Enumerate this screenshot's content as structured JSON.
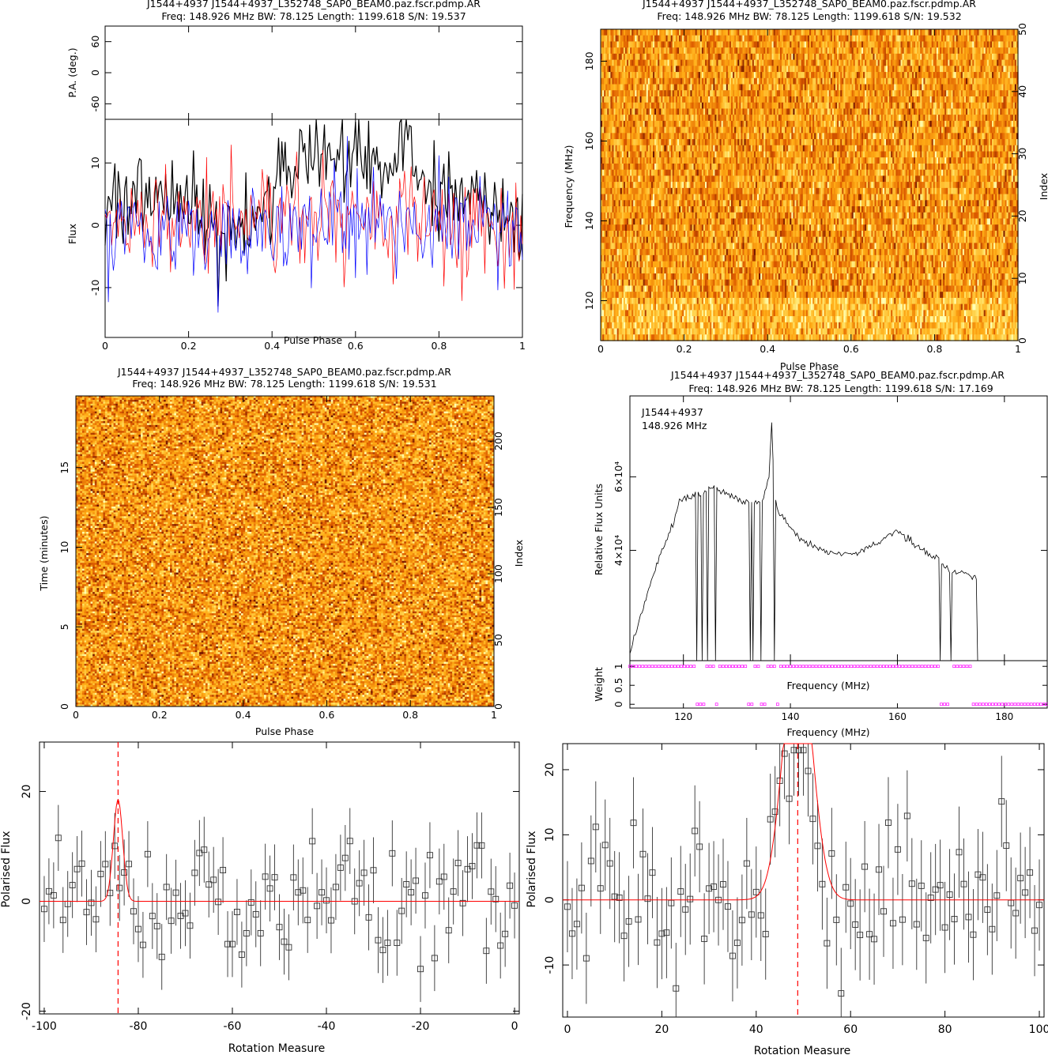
{
  "panels": {
    "tl": {
      "title1": "J1544+4937 J1544+4937_L352748_SAP0_BEAM0.paz.fscr.pdmp.AR",
      "title2": "Freq: 148.926 MHz BW: 78.125 Length: 1199.618 S/N: 19.537",
      "pa_ylabel": "P.A. (deg.)",
      "flux_ylabel": "Flux",
      "xlabel": "Pulse Phase"
    },
    "tr": {
      "title1": "J1544+4937 J1544+4937_L352748_SAP0_BEAM0.paz.fscr.pdmp.AR",
      "title2": "Freq: 148.926 MHz BW: 78.125 Length: 1199.618 S/N: 19.532",
      "ylabel": "Frequency (MHz)",
      "ylabel_right": "Index",
      "xlabel": "Pulse Phase"
    },
    "ml": {
      "title1": "J1544+4937 J1544+4937_L352748_SAP0_BEAM0.paz.fscr.pdmp.AR",
      "title2": "Freq: 148.926 MHz BW: 78.125 Length: 1199.618 S/N: 19.531",
      "ylabel": "Time (minutes)",
      "ylabel_right": "Index",
      "xlabel": "Pulse Phase"
    },
    "mr": {
      "title1": "J1544+4937 J1544+4937_L352748_SAP0_BEAM0.paz.fscr.pdmp.AR",
      "title2": "Freq: 148.926 MHz BW: 78.125 Length: 1199.618 S/N: 17.169",
      "annot1": "J1544+4937",
      "annot2": "148.926 MHz",
      "ylabel": "Relative Flux Units",
      "weight_ylabel": "Weight",
      "inner_xlabel": "Frequency (MHz)",
      "xlabel": "Frequency (MHz)"
    },
    "bl": {
      "xlabel": "Rotation Measure",
      "ylabel": "Polarised Flux"
    },
    "br": {
      "xlabel": "Rotation Measure",
      "ylabel": "Polarised Flux"
    }
  },
  "colors": {
    "axis": "#000000",
    "profile_I": "#000000",
    "profile_L": "#ff0000",
    "profile_V": "#0000ff",
    "fit": "#ff0000",
    "marker_magenta": "#ff00ff",
    "heat_low": "#7a1a00",
    "heat_mid": "#ff9900",
    "heat_high": "#ffffa0"
  },
  "chart_data": [
    {
      "id": "tl_pa",
      "type": "scatter",
      "xlim": [
        0,
        1
      ],
      "ylim": [
        -90,
        90
      ],
      "yticks": [
        -60,
        0,
        60
      ],
      "ylabel": "P.A. (deg.)",
      "points": []
    },
    {
      "id": "tl_flux",
      "type": "line",
      "xlim": [
        0,
        1
      ],
      "ylim": [
        -18,
        17
      ],
      "xticks": [
        0,
        0.2,
        0.4,
        0.6,
        0.8,
        1
      ],
      "yticks": [
        -10,
        0,
        10
      ],
      "xlabel": "Pulse Phase",
      "ylabel": "Flux",
      "series": [
        {
          "color": "#000000",
          "anchors": [
            [
              0,
              2
            ],
            [
              0.03,
              5
            ],
            [
              0.1,
              3
            ],
            [
              0.2,
              4
            ],
            [
              0.3,
              -1
            ],
            [
              0.36,
              1
            ],
            [
              0.42,
              8
            ],
            [
              0.5,
              12
            ],
            [
              0.6,
              11
            ],
            [
              0.66,
              9
            ],
            [
              0.72,
              11
            ],
            [
              0.8,
              6
            ],
            [
              0.9,
              3
            ],
            [
              1,
              1
            ]
          ],
          "noise": 3.5,
          "n": 256,
          "spikes": [
            [
              0.27,
              -13
            ],
            [
              0.29,
              -9
            ],
            [
              0.5,
              16
            ],
            [
              0.73,
              16
            ],
            [
              0.21,
              12
            ]
          ]
        },
        {
          "color": "#ff0000",
          "anchors": [
            [
              0,
              0
            ],
            [
              0.5,
              2
            ],
            [
              1,
              0
            ]
          ],
          "noise": 4.0,
          "n": 256,
          "spikes": []
        },
        {
          "color": "#0000ff",
          "anchors": [
            [
              0,
              -1
            ],
            [
              0.5,
              0
            ],
            [
              1,
              -1
            ]
          ],
          "noise": 4.0,
          "n": 256,
          "spikes": [
            [
              0.27,
              -14
            ]
          ]
        }
      ]
    },
    {
      "id": "tr_freqphase",
      "type": "heatmap",
      "xlim": [
        0,
        1
      ],
      "ylim": [
        110,
        188
      ],
      "xticks": [
        0,
        0.2,
        0.4,
        0.6,
        0.8,
        1
      ],
      "yticks": [
        120,
        140,
        160,
        180
      ],
      "yticks_right": [
        0,
        10,
        20,
        30,
        40,
        50
      ],
      "right_lim": [
        0,
        50
      ],
      "nx": 256,
      "ny": 51,
      "xlabel": "Pulse Phase",
      "ylabel": "Frequency (MHz)"
    },
    {
      "id": "ml_timephase",
      "type": "heatmap",
      "xlim": [
        0,
        1
      ],
      "ylim": [
        0,
        19.5
      ],
      "xticks": [
        0,
        0.2,
        0.4,
        0.6,
        0.8,
        1
      ],
      "yticks": [
        0,
        5,
        10,
        15
      ],
      "yticks_right": [
        0,
        50,
        100,
        150,
        200
      ],
      "right_lim": [
        0,
        234
      ],
      "nx": 256,
      "ny": 234,
      "xlabel": "Pulse Phase",
      "ylabel": "Time (minutes)"
    },
    {
      "id": "mr_spectrum",
      "type": "line",
      "xlim": [
        110,
        188
      ],
      "ylim": [
        10000,
        82000
      ],
      "xticks": [
        120,
        140,
        160,
        180
      ],
      "ytick_labels": [
        "4×10⁴",
        "6×10⁴"
      ],
      "yticks": [
        40000,
        60000
      ],
      "annotations": [
        "J1544+4937",
        "148.926 MHz"
      ],
      "ylabel": "Relative Flux Units",
      "x": [
        110,
        112,
        114,
        116,
        118,
        119.5,
        121,
        122,
        123,
        124,
        125,
        126,
        127,
        128,
        130,
        132,
        133,
        134,
        135,
        136,
        136.5,
        137,
        138,
        140,
        142,
        144,
        146,
        148,
        150,
        152,
        154,
        156,
        158,
        160,
        162,
        164,
        166,
        168,
        170,
        172,
        174,
        175
      ],
      "y": [
        12000,
        22000,
        32000,
        40000,
        47000,
        54000,
        54000,
        55000,
        55000,
        56000,
        57000,
        57000,
        56000,
        55000,
        54000,
        53000,
        53000,
        53000,
        54000,
        60000,
        75000,
        54000,
        50000,
        46000,
        43000,
        41000,
        40000,
        39000,
        39000,
        39000,
        40000,
        42000,
        44000,
        45000,
        43000,
        41000,
        39000,
        37000,
        34000,
        34000,
        33000,
        32000
      ],
      "zero_channels": [
        122.5,
        123.5,
        124.5,
        126,
        132.5,
        133,
        134.5,
        137,
        168,
        170,
        175
      ]
    },
    {
      "id": "mr_weight",
      "type": "scatter",
      "xlim": [
        110,
        188
      ],
      "ylim": [
        -0.1,
        1.15
      ],
      "yticks": [
        0,
        0.5,
        1
      ],
      "xticks": [
        120,
        140,
        160,
        180
      ],
      "xlabel": "Frequency (MHz)",
      "ylabel": "Weight",
      "zero_channels": [
        122.5,
        123.5,
        126,
        132,
        133,
        134.5,
        135,
        137.5,
        168,
        168.5,
        169,
        169.5,
        174,
        175,
        176,
        177,
        178,
        179,
        180,
        181,
        182,
        183,
        184,
        185,
        186,
        187,
        188
      ],
      "one_ranges": [
        [
          110,
          168
        ],
        [
          170,
          175
        ]
      ]
    },
    {
      "id": "bl_rm",
      "type": "scatter",
      "xlim": [
        -101,
        1
      ],
      "ylim": [
        -20.5,
        29
      ],
      "xticks": [
        -100,
        -80,
        -60,
        -40,
        -20,
        0
      ],
      "yticks": [
        -20,
        0,
        20
      ],
      "xlabel": "Rotation Measure",
      "ylabel": "Polarised Flux",
      "rm_peak": -84.3,
      "fit_peak_height": 18.5,
      "fit_width": 1.0,
      "n": 101,
      "err": 6.0
    },
    {
      "id": "br_rm",
      "type": "scatter",
      "xlim": [
        -1,
        101
      ],
      "ylim": [
        -18,
        24
      ],
      "xticks": [
        0,
        20,
        40,
        60,
        80,
        100
      ],
      "yticks": [
        -10,
        0,
        10,
        20
      ],
      "xlabel": "Rotation Measure",
      "ylabel": "Polarised Flux",
      "rm_peak": 48.8,
      "fit_peak_height": 40,
      "fit_width": 3.0,
      "n": 101,
      "err": 7.0
    }
  ]
}
